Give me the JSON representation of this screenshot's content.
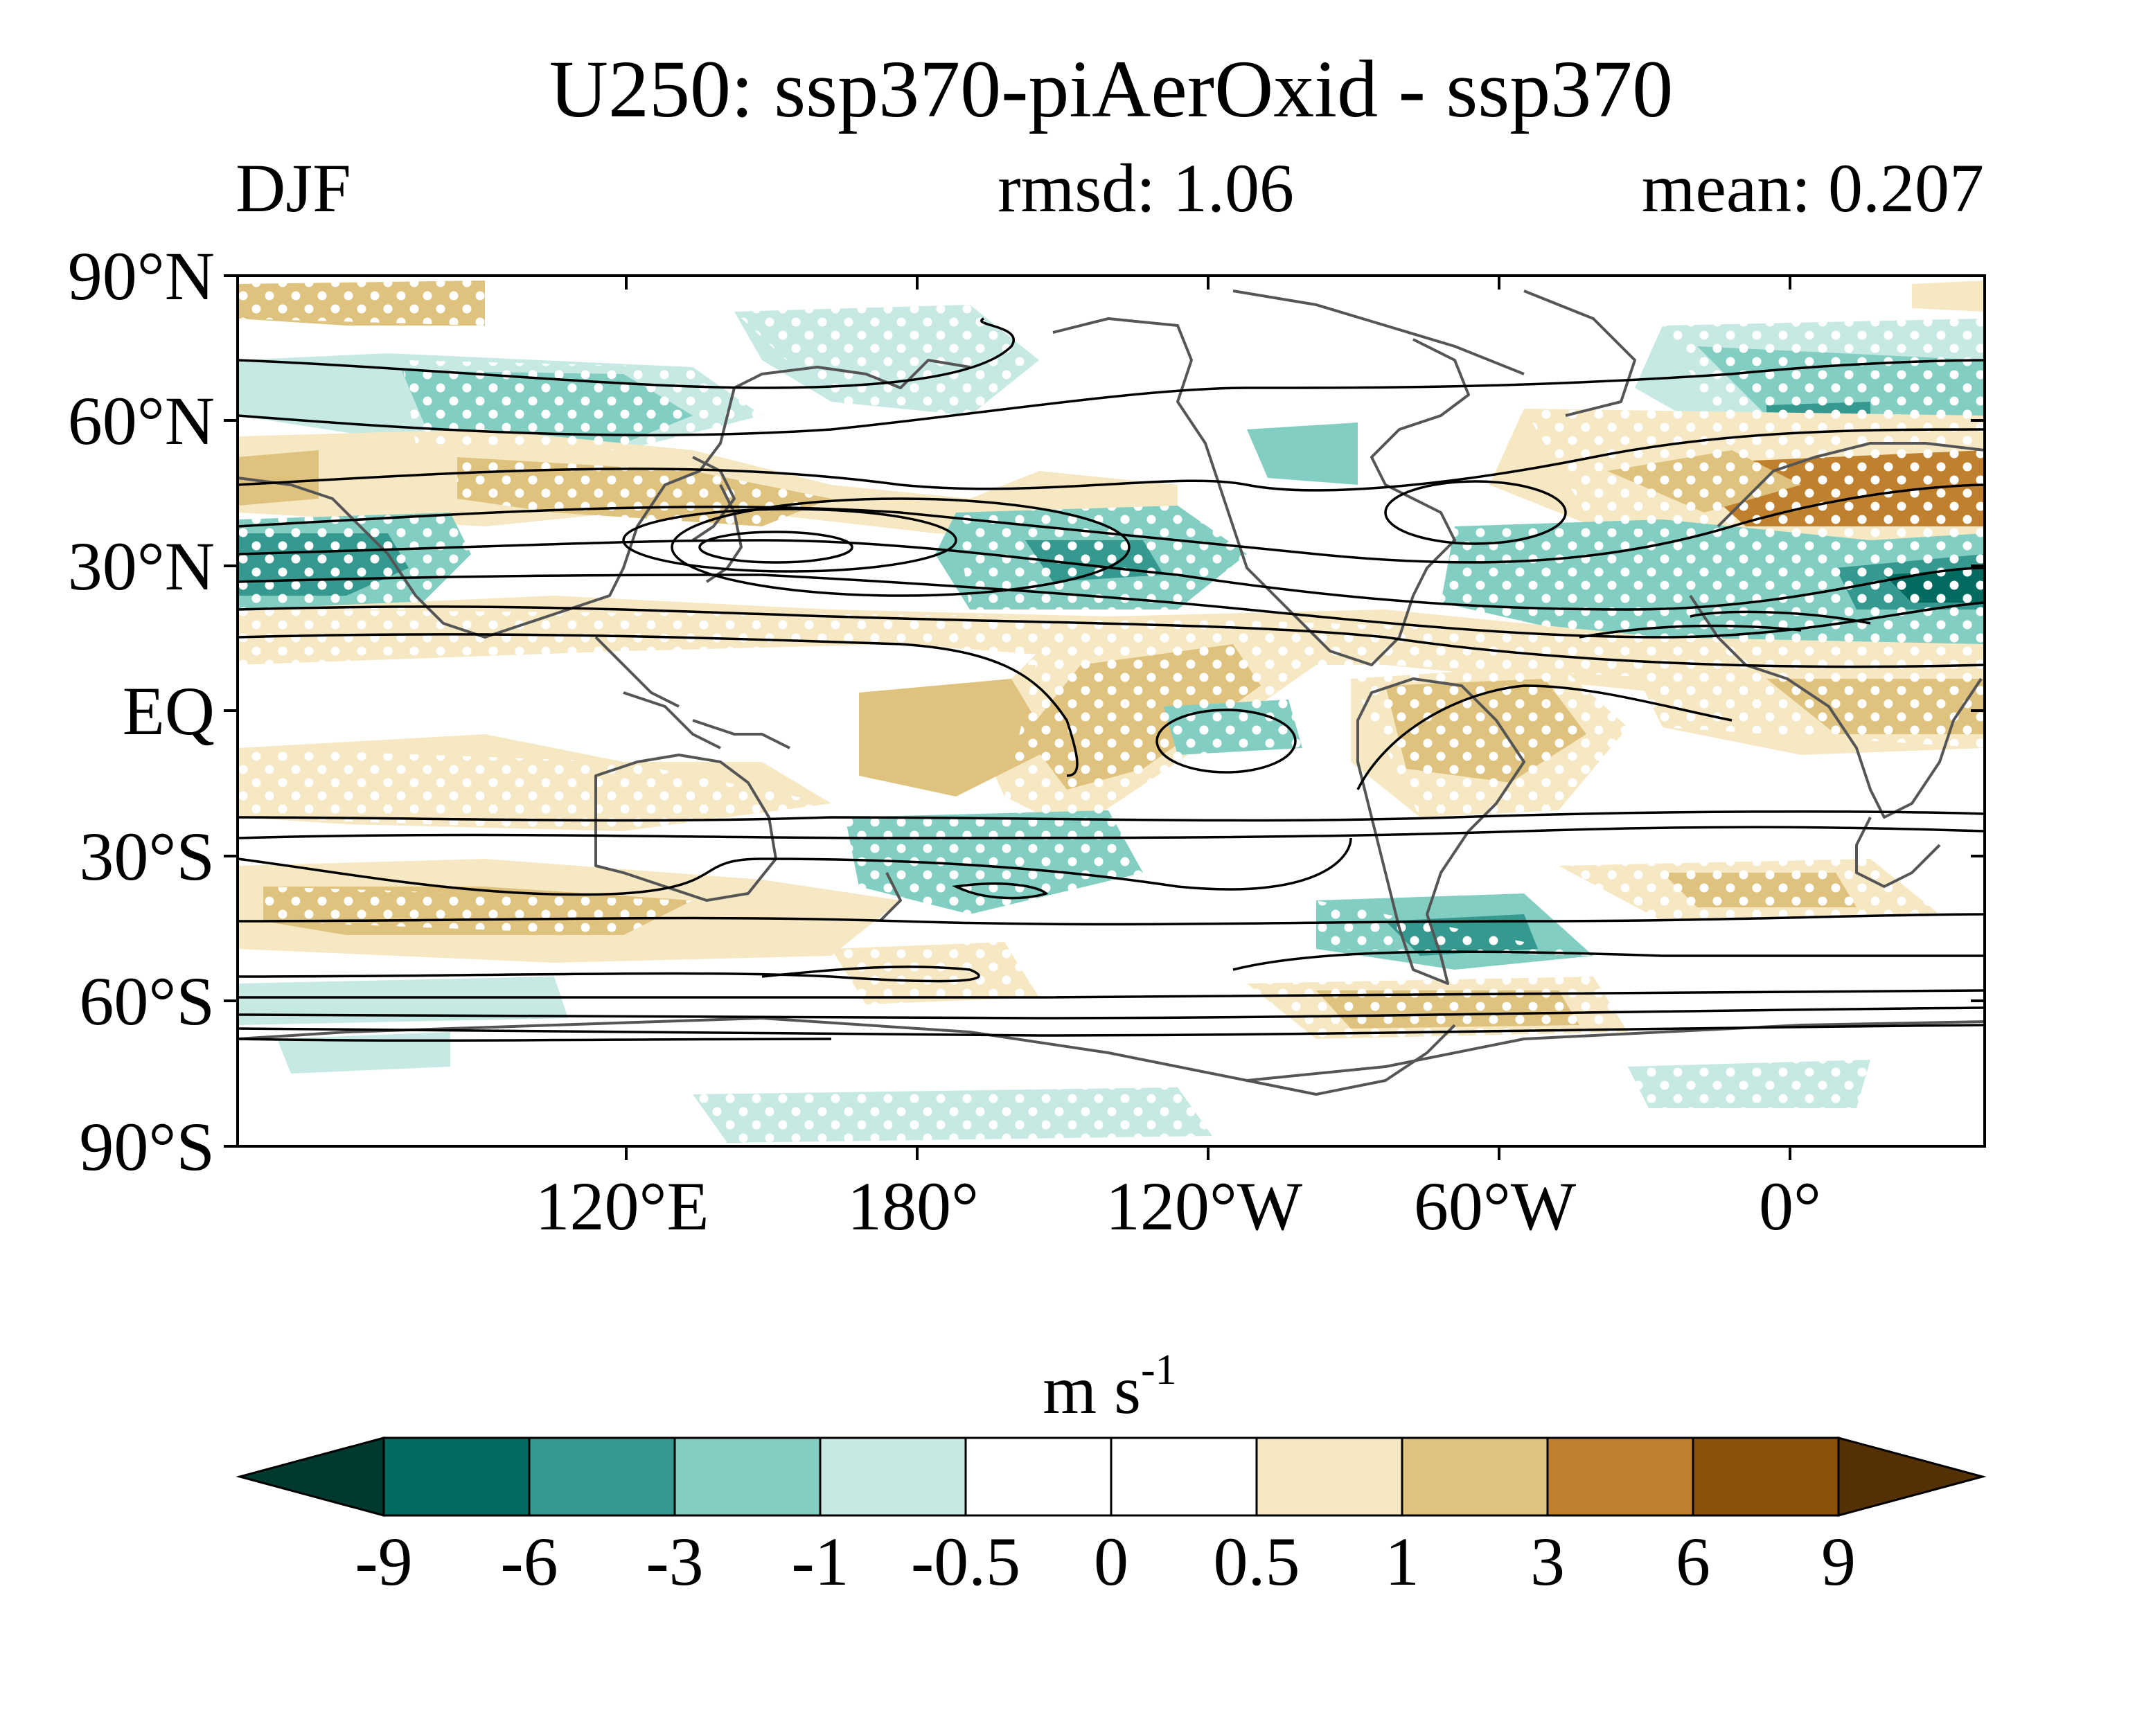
{
  "title": "U250: ssp370-piAerOxid - ssp370",
  "season": "DJF",
  "rmsd_label": "rmsd: 1.06",
  "mean_label": "mean: 0.207",
  "lat_labels": [
    "90°N",
    "60°N",
    "30°N",
    "EQ",
    "30°S",
    "60°S",
    "90°S"
  ],
  "lon_labels": [
    "120°E",
    "180°",
    "120°W",
    "60°W",
    "0°"
  ],
  "colorbar": {
    "unit_base": "m s",
    "unit_exp": "-1",
    "levels": [
      "-9",
      "-6",
      "-3",
      "-1",
      "-0.5",
      "0",
      "0.5",
      "1",
      "3",
      "6",
      "9"
    ],
    "colors": [
      "#00392e",
      "#016b60",
      "#369990",
      "#82cec2",
      "#c6e9e3",
      "#ffffff",
      "#ffffff",
      "#f6e8c3",
      "#dfc27d",
      "#bf812d",
      "#8c510a",
      "#543005"
    ]
  },
  "map": {
    "lon_range_deg": [
      40,
      400
    ],
    "lat_range_deg": [
      -90,
      90
    ],
    "stippling": "white dots mark significant differences",
    "contours": "black lines show climatological 250-hPa zonal wind",
    "coastline_color": "#555555"
  }
}
